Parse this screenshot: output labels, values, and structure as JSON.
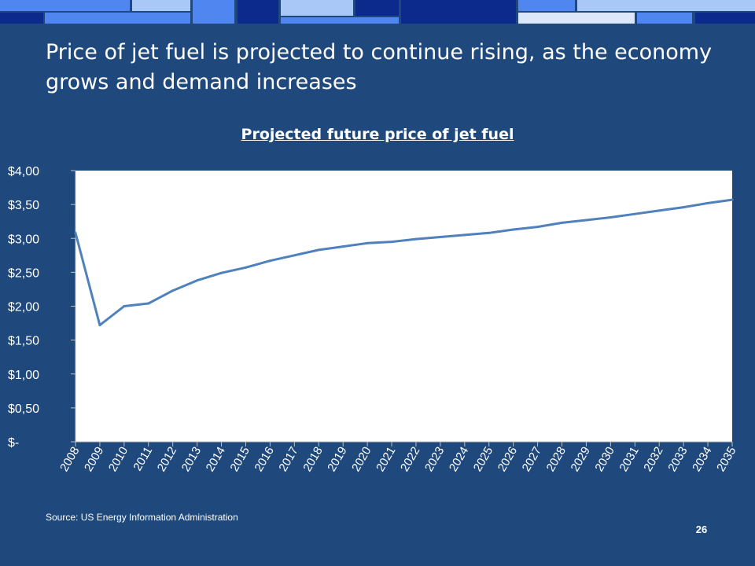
{
  "slide": {
    "title": "Price of jet fuel is projected to continue rising, as the economy grows and demand increases",
    "source": "Source: US Energy Information Administration",
    "page_number": "26"
  },
  "colors": {
    "background": "#1f497d",
    "line": "#4f81bd",
    "plot_area": "#ffffff",
    "decor_dark": "#0b2a8c",
    "decor_mid": "#4f86f0",
    "decor_light": "#a9c8f7",
    "decor_pale": "#dce8fa"
  },
  "chart_data": {
    "type": "line",
    "title": "Projected future price of jet fuel",
    "xlabel": "",
    "ylabel": "",
    "categories": [
      "2008",
      "2009",
      "2010",
      "2011",
      "2012",
      "2013",
      "2014",
      "2015",
      "2016",
      "2017",
      "2018",
      "2019",
      "2020",
      "2021",
      "2022",
      "2023",
      "2024",
      "2025",
      "2026",
      "2027",
      "2028",
      "2029",
      "2030",
      "2031",
      "2032",
      "2033",
      "2034",
      "2035"
    ],
    "series": [
      {
        "values": [
          3.08,
          1.72,
          2.0,
          2.04,
          2.23,
          2.38,
          2.49,
          2.57,
          2.67,
          2.75,
          2.83,
          2.88,
          2.93,
          2.95,
          2.99,
          3.02,
          3.05,
          3.08,
          3.13,
          3.17,
          3.23,
          3.27,
          3.31,
          3.36,
          3.41,
          3.46,
          3.52,
          3.57
        ]
      }
    ],
    "ylim": [
      0,
      4
    ],
    "y_ticks": [
      0,
      0.5,
      1,
      1.5,
      2,
      2.5,
      3,
      3.5,
      4
    ],
    "y_tick_labels": [
      "$-",
      "$0,50",
      "$1,00",
      "$1,50",
      "$2,00",
      "$2,50",
      "$3,00",
      "$3,50",
      "$4,00"
    ],
    "grid": false,
    "legend": "none"
  }
}
